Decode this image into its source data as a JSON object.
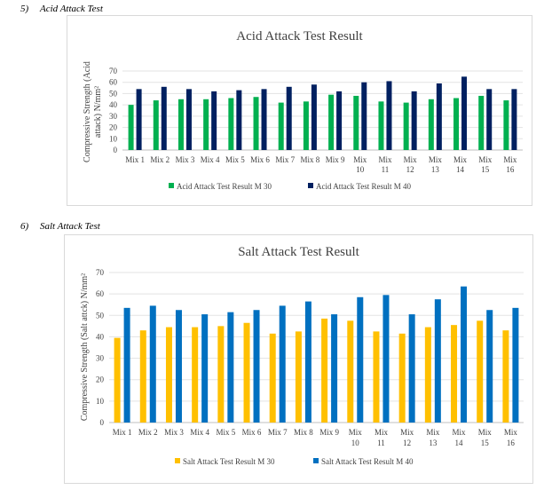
{
  "headings": {
    "acid": {
      "number": "5)",
      "text": "Acid Attack Test"
    },
    "salt": {
      "number": "6)",
      "text": "Salt Attack Test"
    }
  },
  "chart_data": [
    {
      "type": "bar",
      "title": "Acid Attack Test Result",
      "ylabel_line1": "Compressive Strength (Acid",
      "ylabel_line2": "attack) N/mm²",
      "xlabel": "",
      "ylim": [
        0,
        70
      ],
      "yticks": [
        0,
        10,
        20,
        30,
        40,
        50,
        60,
        70
      ],
      "grid": true,
      "legend_position": "bottom",
      "categories": [
        "Mix 1",
        "Mix 2",
        "Mix 3",
        "Mix 4",
        "Mix 5",
        "Mix 6",
        "Mix 7",
        "Mix 8",
        "Mix 9",
        "Mix 10",
        "Mix 11",
        "Mix 12",
        "Mix 13",
        "Mix 14",
        "Mix 15",
        "Mix 16"
      ],
      "series": [
        {
          "name": "Acid Attack Test Result  M 30",
          "color": "#00b050",
          "values": [
            40,
            44,
            45,
            45,
            46,
            47,
            42,
            43,
            49,
            48,
            43,
            42,
            45,
            46,
            48,
            44
          ]
        },
        {
          "name": "Acid Attack Test Result   M 40",
          "color": "#002060",
          "values": [
            54,
            56,
            54,
            52,
            53,
            54,
            56,
            58,
            52,
            60,
            61,
            52,
            59,
            65,
            54,
            54
          ]
        }
      ]
    },
    {
      "type": "bar",
      "title": "Salt Attack Test Result",
      "ylabel_line1": "Compressive Strength (Salt attck) N/mm²",
      "ylabel_line2": "",
      "xlabel": "",
      "ylim": [
        0,
        70
      ],
      "yticks": [
        0,
        10,
        20,
        30,
        40,
        50,
        60,
        70
      ],
      "grid": true,
      "legend_position": "bottom",
      "categories": [
        "Mix 1",
        "Mix 2",
        "Mix 3",
        "Mix 4",
        "Mix 5",
        "Mix 6",
        "Mix 7",
        "Mix 8",
        "Mix 9",
        "Mix 10",
        "Mix 11",
        "Mix 12",
        "Mix 13",
        "Mix 14",
        "Mix 15",
        "Mix 16"
      ],
      "series": [
        {
          "name": "Salt Attack Test Result  M 30",
          "color": "#ffc000",
          "values": [
            39.5,
            43,
            44.5,
            44.5,
            45,
            46.5,
            41.5,
            42.5,
            48.5,
            47.5,
            42.5,
            41.5,
            44.5,
            45.5,
            47.5,
            43
          ]
        },
        {
          "name": "Salt Attack Test Result   M 40",
          "color": "#0070c0",
          "values": [
            53.5,
            54.5,
            52.5,
            50.5,
            51.5,
            52.5,
            54.5,
            56.5,
            50.5,
            58.5,
            59.5,
            50.5,
            57.5,
            63.5,
            52.5,
            53.5
          ]
        }
      ]
    }
  ]
}
